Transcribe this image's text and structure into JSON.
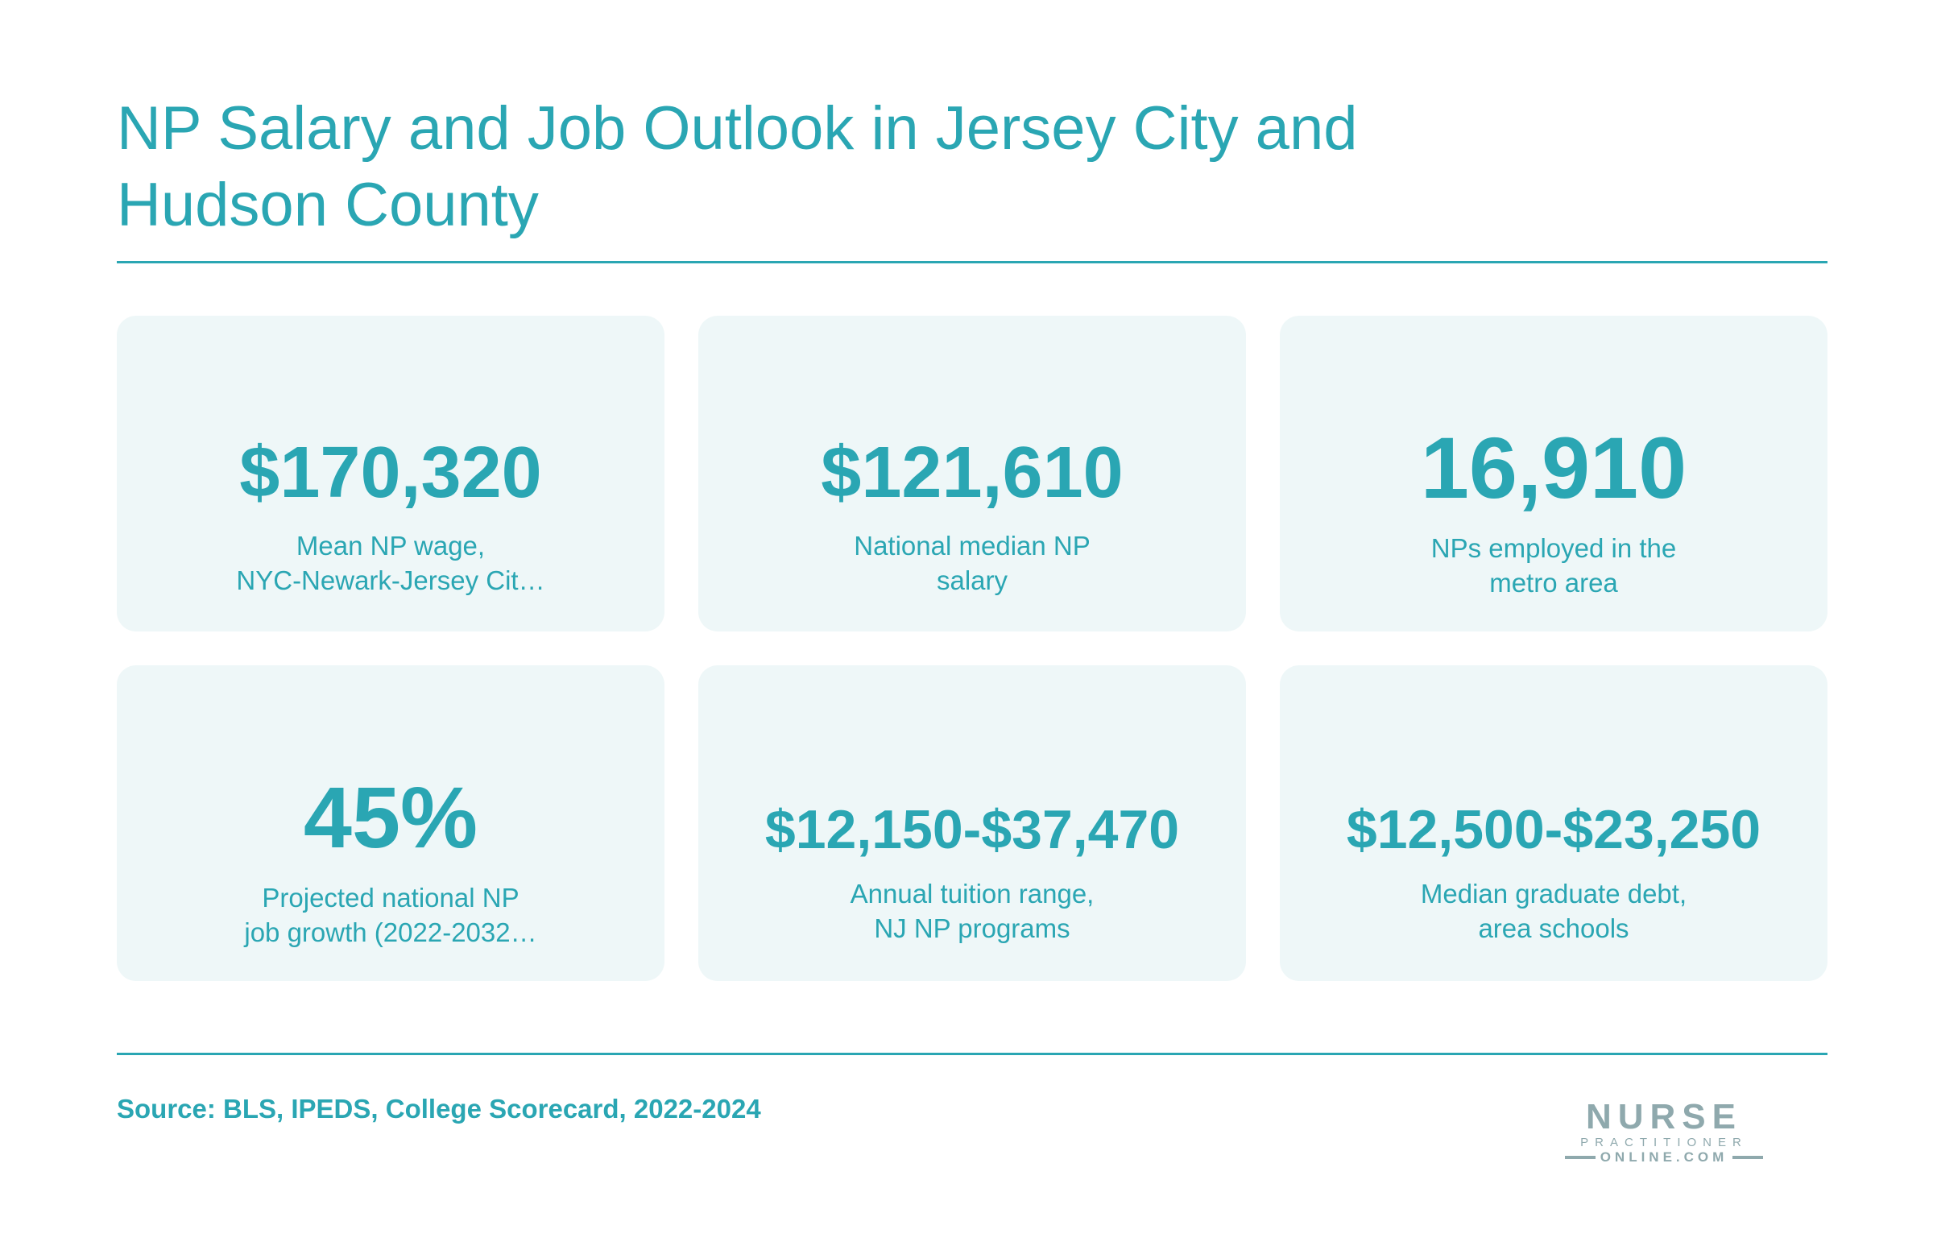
{
  "header": {
    "title_line1": "NP Salary and Job Outlook in Jersey City and",
    "title_line2": "Hudson County"
  },
  "stats": [
    {
      "value": "$170,320",
      "label_line1": "Mean NP wage,",
      "label_line2": "NYC-Newark-Jersey Cit…"
    },
    {
      "value": "$121,610",
      "label_line1": "National median NP",
      "label_line2": "salary"
    },
    {
      "value": "16,910",
      "label_line1": "NPs employed in the",
      "label_line2": "metro area"
    },
    {
      "value": "45%",
      "label_line1": "Projected national NP",
      "label_line2": "job growth (2022-2032…"
    },
    {
      "value": "$12,150-$37,470",
      "label_line1": "Annual tuition range,",
      "label_line2": "NJ NP programs"
    },
    {
      "value": "$12,500-$23,250",
      "label_line1": "Median graduate debt,",
      "label_line2": "area schools"
    }
  ],
  "footer": {
    "source": "Source: BLS, IPEDS, College Scorecard, 2022-2024",
    "logo_word": "NURSE",
    "logo_sub": "PRACTITIONER",
    "logo_domain": "ONLINE.COM"
  },
  "colors": {
    "accent": "#2aa6b3",
    "card_background": "#eef7f8",
    "logo_gray": "#8fa9ad"
  }
}
